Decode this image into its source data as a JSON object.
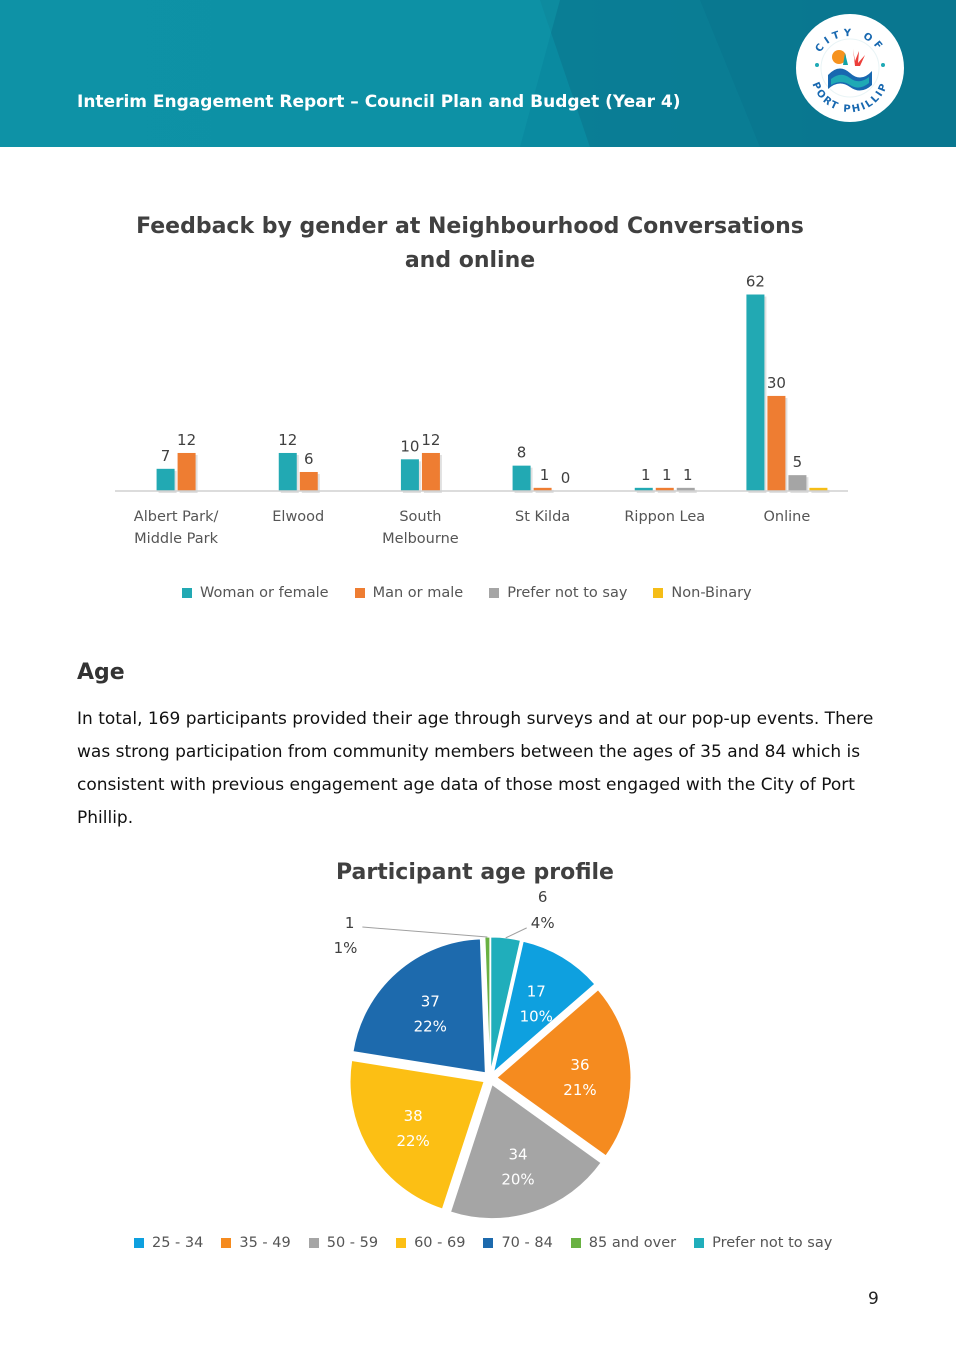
{
  "header": {
    "title": "Interim Engagement Report – Council Plan and Budget (Year 4)",
    "logo_text_top": "CITY OF",
    "logo_text_bottom": "PORT PHILLIP",
    "colors": {
      "primary": "#0d93a8",
      "dark": "#07748a",
      "light": "#19a9b6"
    }
  },
  "gender_chart": {
    "title": "Feedback by gender at Neighbourhood Conversations and online"
  },
  "age_section": {
    "heading": "Age",
    "paragraph": "In total, 169 participants provided their age through surveys and at our pop-up events. There was strong participation from community members between the ages of 35 and 84 which is consistent with previous engagement age data of those most engaged with the City of Port Phillip."
  },
  "age_chart": {
    "title": "Participant age profile"
  },
  "page_number": "9",
  "chart_data": [
    {
      "type": "bar",
      "title": "Feedback by gender at Neighbourhood Conversations and online",
      "categories": [
        "Albert Park/ Middle Park",
        "Elwood",
        "South Melbourne",
        "St Kilda",
        "Rippon Lea",
        "Online"
      ],
      "category_lines": [
        [
          "Albert Park/",
          "Middle Park"
        ],
        [
          "Elwood"
        ],
        [
          "South",
          "Melbourne"
        ],
        [
          "St Kilda"
        ],
        [
          "Rippon Lea"
        ],
        [
          "Online"
        ]
      ],
      "series": [
        {
          "name": "Woman or female",
          "color": "#22a9b3",
          "values": [
            7,
            12,
            10,
            8,
            1,
            62
          ]
        },
        {
          "name": "Man or male",
          "color": "#ee7d32",
          "values": [
            12,
            6,
            12,
            1,
            1,
            30
          ]
        },
        {
          "name": "Prefer not to say",
          "color": "#a5a5a5",
          "values": [
            null,
            null,
            null,
            0,
            1,
            5
          ]
        },
        {
          "name": "Non-Binary",
          "color": "#f5bd17",
          "values": [
            null,
            null,
            null,
            null,
            null,
            1
          ]
        }
      ],
      "data_labels": [
        [
          7,
          12,
          10,
          8,
          1,
          62
        ],
        [
          12,
          6,
          12,
          1,
          1,
          30
        ],
        [
          null,
          null,
          null,
          0,
          1,
          5
        ],
        [
          null,
          null,
          null,
          null,
          null,
          null
        ]
      ],
      "ylim": [
        0,
        65
      ],
      "grid": false,
      "legend_position": "bottom"
    },
    {
      "type": "pie",
      "title": "Participant age profile",
      "categories": [
        "25 - 34",
        "35 - 49",
        "50 - 59",
        "60 - 69",
        "70 - 84",
        "85 and over",
        "Prefer not to say"
      ],
      "values": [
        17,
        36,
        34,
        38,
        37,
        1,
        6
      ],
      "percent_labels": [
        "10%",
        "21%",
        "20%",
        "22%",
        "22%",
        "1%",
        "4%"
      ],
      "colors": [
        "#0ea0df",
        "#f58b1f",
        "#a5a5a5",
        "#fcbf14",
        "#1d6aad",
        "#69b142",
        "#20aebb"
      ],
      "legend_position": "bottom"
    }
  ]
}
